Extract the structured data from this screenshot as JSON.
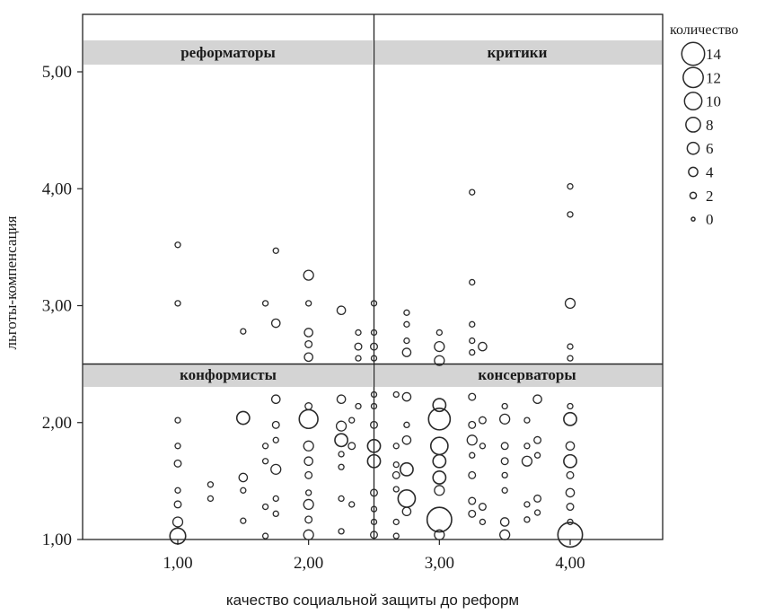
{
  "chart_data": {
    "type": "scatter",
    "subtype": "bubble",
    "xlabel": "качество социальной защиты до реформ",
    "ylabel": "льготы-компенсация",
    "xlim": [
      0.3,
      4.7
    ],
    "ylim": [
      1.0,
      5.45
    ],
    "x_ticks": [
      {
        "value": 1,
        "label": "1,00"
      },
      {
        "value": 2,
        "label": "2,00"
      },
      {
        "value": 3,
        "label": "3,00"
      },
      {
        "value": 4,
        "label": "4,00"
      }
    ],
    "y_ticks": [
      {
        "value": 1,
        "label": "1,00"
      },
      {
        "value": 2,
        "label": "2,00"
      },
      {
        "value": 3,
        "label": "3,00"
      },
      {
        "value": 4,
        "label": "4,00"
      },
      {
        "value": 5,
        "label": "5,00"
      }
    ],
    "grid": false,
    "reference_lines": {
      "x": 2.5,
      "y": 2.5
    },
    "quadrant_labels": [
      {
        "text": "реформаторы",
        "quadrant": "top-left"
      },
      {
        "text": "критики",
        "quadrant": "top-right"
      },
      {
        "text": "конформисты",
        "quadrant": "bottom-left"
      },
      {
        "text": "консерваторы",
        "quadrant": "bottom-right"
      }
    ],
    "legend": {
      "title": "количество",
      "placement": "right",
      "labels": [
        "14",
        "12",
        "10",
        "8",
        "6",
        "4",
        "2",
        "0"
      ],
      "sizes": [
        14,
        12,
        10,
        8,
        6,
        4,
        2,
        0
      ]
    },
    "points": [
      {
        "x": 1.0,
        "y": 3.52,
        "n": 1
      },
      {
        "x": 1.0,
        "y": 3.02,
        "n": 1
      },
      {
        "x": 1.0,
        "y": 2.02,
        "n": 1
      },
      {
        "x": 1.0,
        "y": 1.8,
        "n": 1
      },
      {
        "x": 1.0,
        "y": 1.65,
        "n": 2
      },
      {
        "x": 1.0,
        "y": 1.42,
        "n": 1
      },
      {
        "x": 1.0,
        "y": 1.3,
        "n": 2
      },
      {
        "x": 1.0,
        "y": 1.15,
        "n": 4
      },
      {
        "x": 1.0,
        "y": 1.03,
        "n": 8
      },
      {
        "x": 1.25,
        "y": 1.47,
        "n": 1
      },
      {
        "x": 1.25,
        "y": 1.35,
        "n": 1
      },
      {
        "x": 1.5,
        "y": 2.78,
        "n": 1
      },
      {
        "x": 1.5,
        "y": 2.04,
        "n": 6
      },
      {
        "x": 1.5,
        "y": 1.53,
        "n": 3
      },
      {
        "x": 1.5,
        "y": 1.42,
        "n": 1
      },
      {
        "x": 1.5,
        "y": 1.16,
        "n": 1
      },
      {
        "x": 1.67,
        "y": 3.02,
        "n": 1
      },
      {
        "x": 1.67,
        "y": 1.8,
        "n": 1
      },
      {
        "x": 1.67,
        "y": 1.67,
        "n": 1
      },
      {
        "x": 1.67,
        "y": 1.28,
        "n": 1
      },
      {
        "x": 1.67,
        "y": 1.03,
        "n": 1
      },
      {
        "x": 1.75,
        "y": 3.47,
        "n": 1
      },
      {
        "x": 1.75,
        "y": 2.85,
        "n": 3
      },
      {
        "x": 1.75,
        "y": 2.2,
        "n": 3
      },
      {
        "x": 1.75,
        "y": 1.98,
        "n": 2
      },
      {
        "x": 1.75,
        "y": 1.85,
        "n": 1
      },
      {
        "x": 1.75,
        "y": 1.6,
        "n": 4
      },
      {
        "x": 1.75,
        "y": 1.35,
        "n": 1
      },
      {
        "x": 1.75,
        "y": 1.22,
        "n": 1
      },
      {
        "x": 2.0,
        "y": 3.26,
        "n": 4
      },
      {
        "x": 2.0,
        "y": 3.02,
        "n": 1
      },
      {
        "x": 2.0,
        "y": 2.77,
        "n": 3
      },
      {
        "x": 2.0,
        "y": 2.67,
        "n": 2
      },
      {
        "x": 2.0,
        "y": 2.56,
        "n": 3
      },
      {
        "x": 2.0,
        "y": 2.14,
        "n": 2
      },
      {
        "x": 2.0,
        "y": 2.03,
        "n": 10
      },
      {
        "x": 2.0,
        "y": 1.8,
        "n": 4
      },
      {
        "x": 2.0,
        "y": 1.67,
        "n": 3
      },
      {
        "x": 2.0,
        "y": 1.55,
        "n": 2
      },
      {
        "x": 2.0,
        "y": 1.4,
        "n": 1
      },
      {
        "x": 2.0,
        "y": 1.3,
        "n": 4
      },
      {
        "x": 2.0,
        "y": 1.17,
        "n": 2
      },
      {
        "x": 2.0,
        "y": 1.04,
        "n": 4
      },
      {
        "x": 2.25,
        "y": 2.96,
        "n": 3
      },
      {
        "x": 2.25,
        "y": 2.2,
        "n": 3
      },
      {
        "x": 2.25,
        "y": 1.97,
        "n": 4
      },
      {
        "x": 2.25,
        "y": 1.85,
        "n": 6
      },
      {
        "x": 2.25,
        "y": 1.73,
        "n": 1
      },
      {
        "x": 2.25,
        "y": 1.62,
        "n": 1
      },
      {
        "x": 2.25,
        "y": 1.35,
        "n": 1
      },
      {
        "x": 2.25,
        "y": 1.07,
        "n": 1
      },
      {
        "x": 2.33,
        "y": 1.8,
        "n": 2
      },
      {
        "x": 2.33,
        "y": 2.02,
        "n": 1
      },
      {
        "x": 2.33,
        "y": 1.3,
        "n": 1
      },
      {
        "x": 2.38,
        "y": 2.77,
        "n": 1
      },
      {
        "x": 2.38,
        "y": 2.65,
        "n": 2
      },
      {
        "x": 2.38,
        "y": 2.55,
        "n": 1
      },
      {
        "x": 2.38,
        "y": 2.14,
        "n": 1
      },
      {
        "x": 2.5,
        "y": 3.02,
        "n": 1
      },
      {
        "x": 2.5,
        "y": 2.77,
        "n": 1
      },
      {
        "x": 2.5,
        "y": 2.65,
        "n": 2
      },
      {
        "x": 2.5,
        "y": 2.55,
        "n": 1
      },
      {
        "x": 2.5,
        "y": 2.24,
        "n": 1
      },
      {
        "x": 2.5,
        "y": 2.14,
        "n": 1
      },
      {
        "x": 2.5,
        "y": 1.98,
        "n": 2
      },
      {
        "x": 2.5,
        "y": 1.8,
        "n": 6
      },
      {
        "x": 2.5,
        "y": 1.67,
        "n": 6
      },
      {
        "x": 2.5,
        "y": 1.4,
        "n": 2
      },
      {
        "x": 2.5,
        "y": 1.26,
        "n": 1
      },
      {
        "x": 2.5,
        "y": 1.15,
        "n": 1
      },
      {
        "x": 2.5,
        "y": 1.04,
        "n": 2
      },
      {
        "x": 2.67,
        "y": 2.24,
        "n": 1
      },
      {
        "x": 2.67,
        "y": 1.8,
        "n": 1
      },
      {
        "x": 2.67,
        "y": 1.64,
        "n": 1
      },
      {
        "x": 2.67,
        "y": 1.55,
        "n": 2
      },
      {
        "x": 2.67,
        "y": 1.43,
        "n": 1
      },
      {
        "x": 2.67,
        "y": 1.15,
        "n": 1
      },
      {
        "x": 2.67,
        "y": 1.03,
        "n": 1
      },
      {
        "x": 2.75,
        "y": 2.94,
        "n": 1
      },
      {
        "x": 2.75,
        "y": 2.84,
        "n": 1
      },
      {
        "x": 2.75,
        "y": 2.7,
        "n": 1
      },
      {
        "x": 2.75,
        "y": 2.6,
        "n": 3
      },
      {
        "x": 2.75,
        "y": 2.22,
        "n": 3
      },
      {
        "x": 2.75,
        "y": 1.98,
        "n": 1
      },
      {
        "x": 2.75,
        "y": 1.85,
        "n": 3
      },
      {
        "x": 2.75,
        "y": 1.6,
        "n": 6
      },
      {
        "x": 2.75,
        "y": 1.35,
        "n": 9
      },
      {
        "x": 2.75,
        "y": 1.24,
        "n": 3
      },
      {
        "x": 3.0,
        "y": 2.77,
        "n": 1
      },
      {
        "x": 3.0,
        "y": 2.65,
        "n": 4
      },
      {
        "x": 3.0,
        "y": 2.53,
        "n": 4
      },
      {
        "x": 3.0,
        "y": 2.15,
        "n": 6
      },
      {
        "x": 3.0,
        "y": 2.03,
        "n": 12
      },
      {
        "x": 3.0,
        "y": 1.8,
        "n": 9
      },
      {
        "x": 3.0,
        "y": 1.67,
        "n": 6
      },
      {
        "x": 3.0,
        "y": 1.53,
        "n": 6
      },
      {
        "x": 3.0,
        "y": 1.42,
        "n": 4
      },
      {
        "x": 3.0,
        "y": 1.17,
        "n": 14
      },
      {
        "x": 3.0,
        "y": 1.04,
        "n": 4
      },
      {
        "x": 3.25,
        "y": 3.97,
        "n": 1
      },
      {
        "x": 3.25,
        "y": 3.2,
        "n": 1
      },
      {
        "x": 3.25,
        "y": 2.84,
        "n": 1
      },
      {
        "x": 3.25,
        "y": 2.7,
        "n": 1
      },
      {
        "x": 3.25,
        "y": 2.6,
        "n": 1
      },
      {
        "x": 3.25,
        "y": 2.22,
        "n": 2
      },
      {
        "x": 3.25,
        "y": 1.98,
        "n": 2
      },
      {
        "x": 3.25,
        "y": 1.85,
        "n": 4
      },
      {
        "x": 3.25,
        "y": 1.72,
        "n": 1
      },
      {
        "x": 3.25,
        "y": 1.55,
        "n": 2
      },
      {
        "x": 3.25,
        "y": 1.33,
        "n": 2
      },
      {
        "x": 3.25,
        "y": 1.22,
        "n": 2
      },
      {
        "x": 3.33,
        "y": 2.65,
        "n": 3
      },
      {
        "x": 3.33,
        "y": 2.02,
        "n": 2
      },
      {
        "x": 3.33,
        "y": 1.8,
        "n": 1
      },
      {
        "x": 3.33,
        "y": 1.28,
        "n": 2
      },
      {
        "x": 3.33,
        "y": 1.15,
        "n": 1
      },
      {
        "x": 3.5,
        "y": 2.14,
        "n": 1
      },
      {
        "x": 3.5,
        "y": 2.03,
        "n": 4
      },
      {
        "x": 3.5,
        "y": 1.8,
        "n": 2
      },
      {
        "x": 3.5,
        "y": 1.67,
        "n": 2
      },
      {
        "x": 3.5,
        "y": 1.55,
        "n": 1
      },
      {
        "x": 3.5,
        "y": 1.42,
        "n": 1
      },
      {
        "x": 3.5,
        "y": 1.15,
        "n": 3
      },
      {
        "x": 3.5,
        "y": 1.04,
        "n": 4
      },
      {
        "x": 3.67,
        "y": 2.02,
        "n": 1
      },
      {
        "x": 3.67,
        "y": 1.8,
        "n": 1
      },
      {
        "x": 3.67,
        "y": 1.67,
        "n": 4
      },
      {
        "x": 3.67,
        "y": 1.3,
        "n": 1
      },
      {
        "x": 3.67,
        "y": 1.17,
        "n": 1
      },
      {
        "x": 3.75,
        "y": 2.2,
        "n": 3
      },
      {
        "x": 3.75,
        "y": 1.85,
        "n": 2
      },
      {
        "x": 3.75,
        "y": 1.72,
        "n": 1
      },
      {
        "x": 3.75,
        "y": 1.35,
        "n": 2
      },
      {
        "x": 3.75,
        "y": 1.23,
        "n": 1
      },
      {
        "x": 4.0,
        "y": 4.02,
        "n": 1
      },
      {
        "x": 4.0,
        "y": 3.78,
        "n": 1
      },
      {
        "x": 4.0,
        "y": 3.02,
        "n": 4
      },
      {
        "x": 4.0,
        "y": 2.65,
        "n": 1
      },
      {
        "x": 4.0,
        "y": 2.55,
        "n": 1
      },
      {
        "x": 4.0,
        "y": 2.14,
        "n": 1
      },
      {
        "x": 4.0,
        "y": 2.03,
        "n": 6
      },
      {
        "x": 4.0,
        "y": 1.8,
        "n": 3
      },
      {
        "x": 4.0,
        "y": 1.67,
        "n": 6
      },
      {
        "x": 4.0,
        "y": 1.55,
        "n": 2
      },
      {
        "x": 4.0,
        "y": 1.4,
        "n": 3
      },
      {
        "x": 4.0,
        "y": 1.28,
        "n": 2
      },
      {
        "x": 4.0,
        "y": 1.15,
        "n": 1
      },
      {
        "x": 4.0,
        "y": 1.04,
        "n": 14
      }
    ]
  }
}
